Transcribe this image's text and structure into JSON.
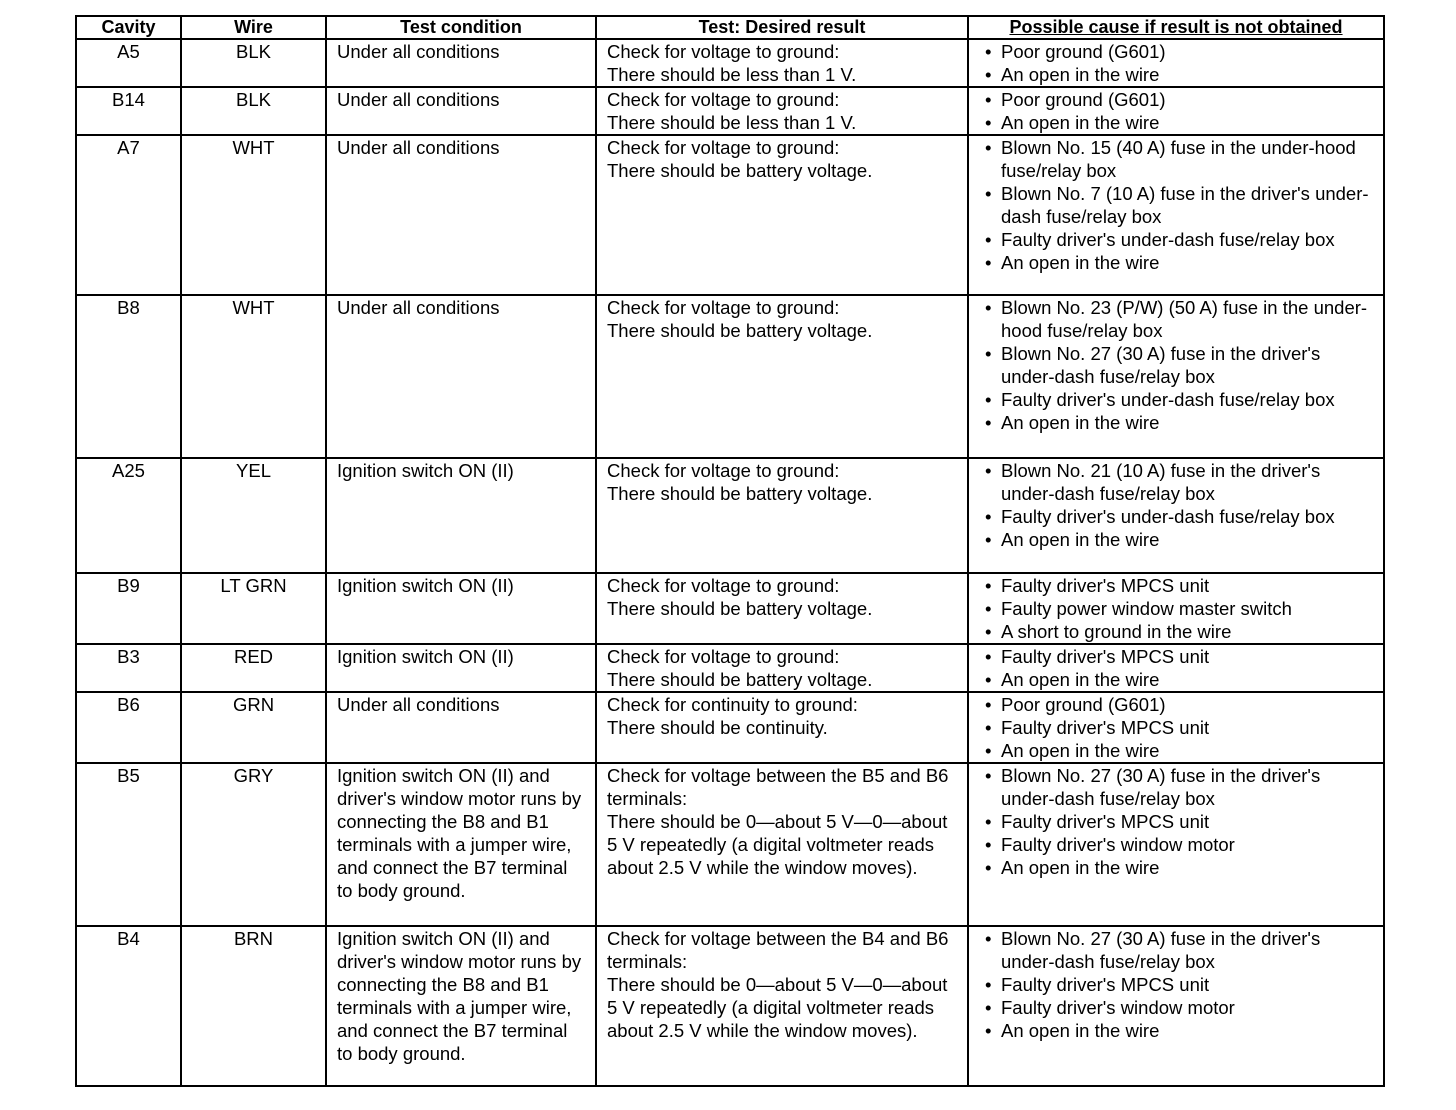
{
  "headers": [
    "Cavity",
    "Wire",
    "Test condition",
    "Test: Desired result",
    "Possible cause if result is not obtained"
  ],
  "rows": [
    {
      "cavity": "A5",
      "wire": "BLK",
      "condition": "Under all conditions",
      "result": "Check for voltage to ground:\nThere should be less than 1 V.",
      "causes": [
        "Poor ground (G601)",
        "An open in the wire"
      ]
    },
    {
      "cavity": "B14",
      "wire": "BLK",
      "condition": "Under all conditions",
      "result": "Check for voltage to ground:\nThere should be less than 1 V.",
      "causes": [
        "Poor ground (G601)",
        "An open in the wire"
      ]
    },
    {
      "cavity": "A7",
      "wire": "WHT",
      "condition": "Under all conditions",
      "result": "Check for voltage to ground:\nThere should be battery voltage.",
      "causes": [
        "Blown No. 15 (40 A) fuse in the under-hood fuse/relay box",
        "Blown No. 7 (10 A) fuse in the driver's under-dash fuse/relay box",
        "Faulty driver's under-dash fuse/relay box",
        "An open in the wire"
      ]
    },
    {
      "cavity": "B8",
      "wire": "WHT",
      "condition": "Under all conditions",
      "result": "Check for voltage to ground:\nThere should be battery voltage.",
      "causes": [
        "Blown No. 23 (P/W) (50 A) fuse in the under-hood fuse/relay box",
        "Blown No. 27 (30 A) fuse in the driver's under-dash fuse/relay box",
        "Faulty driver's under-dash fuse/relay box",
        "An open in the wire"
      ]
    },
    {
      "cavity": "A25",
      "wire": "YEL",
      "condition": "Ignition switch ON (II)",
      "result": "Check for voltage to ground:\nThere should be battery voltage.",
      "causes": [
        "Blown No. 21 (10 A) fuse in the driver's under-dash fuse/relay box",
        "Faulty driver's under-dash fuse/relay box",
        "An open in the wire"
      ]
    },
    {
      "cavity": "B9",
      "wire": "LT GRN",
      "condition": "Ignition switch ON (II)",
      "result": "Check for voltage to ground:\nThere should be battery voltage.",
      "causes": [
        "Faulty driver's MPCS unit",
        "Faulty power window master switch",
        "A short to ground in the wire"
      ]
    },
    {
      "cavity": "B3",
      "wire": "RED",
      "condition": "Ignition switch ON (II)",
      "result": "Check for voltage to ground:\nThere should be battery voltage.",
      "causes": [
        "Faulty driver's MPCS unit",
        "An open in the wire"
      ]
    },
    {
      "cavity": "B6",
      "wire": "GRN",
      "condition": "Under all conditions",
      "result": "Check for continuity to ground:\nThere should be continuity.",
      "causes": [
        "Poor ground (G601)",
        "Faulty driver's MPCS unit",
        "An open in the wire"
      ]
    },
    {
      "cavity": "B5",
      "wire": "GRY",
      "condition": "Ignition switch ON (II) and driver's window motor runs by connecting the B8 and B1 terminals with a jumper wire, and connect the B7 terminal to body ground.",
      "result": "Check for voltage between the B5 and B6 terminals:\nThere should be 0—about 5 V—0—about 5 V repeatedly (a digital voltmeter reads about 2.5 V while the window moves).",
      "causes": [
        "Blown No. 27 (30 A) fuse in the driver's under-dash fuse/relay box",
        "Faulty driver's MPCS unit",
        "Faulty driver's window motor",
        "An open in the wire"
      ]
    },
    {
      "cavity": "B4",
      "wire": "BRN",
      "condition": "Ignition switch ON (II) and driver's window motor runs by connecting the B8 and B1 terminals with a jumper wire, and connect the B7 terminal to body ground.",
      "result": "Check for voltage between the B4 and B6 terminals:\nThere should be 0—about 5 V—0—about 5 V repeatedly (a digital voltmeter reads about 2.5 V while the window moves).",
      "causes": [
        "Blown No. 27 (30 A) fuse in the driver's under-dash fuse/relay box",
        "Faulty driver's MPCS unit",
        "Faulty driver's window motor",
        "An open in the wire"
      ]
    }
  ]
}
